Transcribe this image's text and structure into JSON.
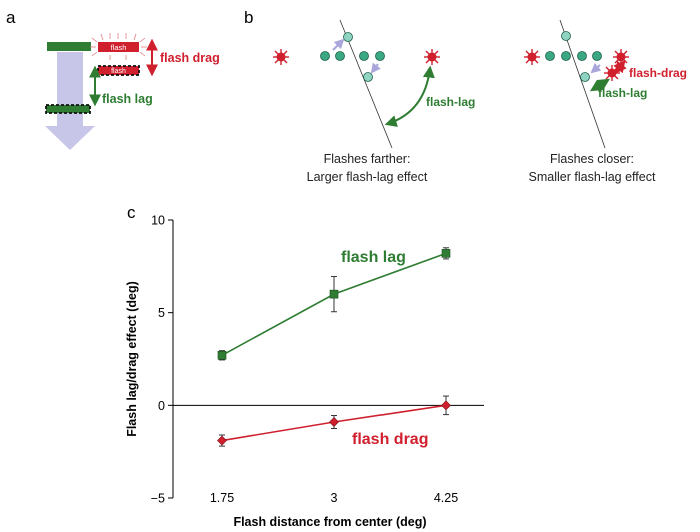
{
  "panels": {
    "a": {
      "letter": "a",
      "flash_text": "flash",
      "flash_drag_label": "flash drag",
      "flash_lag_label": "flash lag"
    },
    "b": {
      "letter": "b",
      "left_label": "flash-lag",
      "right_lag_label": "flash-lag",
      "right_drag_label": "flash-drag",
      "left_caption_line1": "Flashes farther:",
      "left_caption_line2": "Larger flash-lag effect",
      "right_caption_line1": "Flashes closer:",
      "right_caption_line2": "Smaller flash-lag effect"
    },
    "c": {
      "letter": "c"
    }
  },
  "colors": {
    "green": "#2e7d32",
    "red": "#d0202e",
    "lavender": "#c7c5e8",
    "teal": "#3aa882"
  },
  "chart_data": {
    "type": "line",
    "xlabel": "Flash distance from center (deg)",
    "ylabel": "Flash lag/drag effect (deg)",
    "x": [
      1.75,
      3,
      4.25
    ],
    "x_tick_labels": [
      "1.75",
      "3",
      "4.25"
    ],
    "ylim": [
      -5,
      10
    ],
    "y_ticks": [
      -5,
      0,
      5,
      10
    ],
    "y_tick_labels": [
      "−5",
      "0",
      "5",
      "10"
    ],
    "zero_line": true,
    "series": [
      {
        "name": "flash lag",
        "values": [
          2.7,
          6.0,
          8.2
        ],
        "errors": [
          0.25,
          0.95,
          0.3
        ],
        "marker": "square",
        "color": "#2e7d32"
      },
      {
        "name": "flash drag",
        "values": [
          -1.9,
          -0.9,
          0.0
        ],
        "errors": [
          0.3,
          0.35,
          0.5
        ],
        "marker": "diamond",
        "color": "#d0202e"
      }
    ]
  }
}
